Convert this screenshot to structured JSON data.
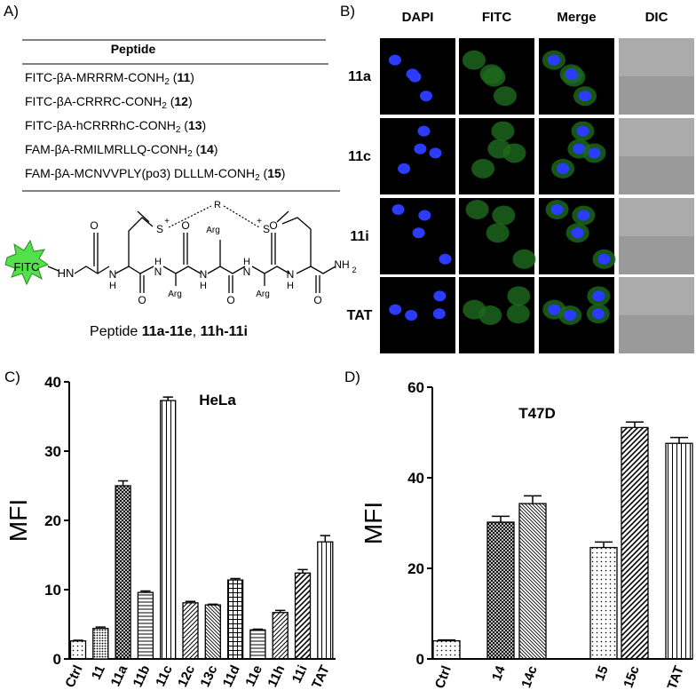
{
  "panel_a": {
    "label": "A)",
    "table": {
      "header": "Peptide",
      "rows": [
        [
          "FITC-βA-MRRRM-CONH",
          "2",
          " (",
          "11",
          ")"
        ],
        [
          "FITC-βA-CRRRC-CONH",
          "2",
          " (",
          "12",
          ")"
        ],
        [
          "FITC-βA-hCRRRhC-CONH",
          "2",
          " (",
          "13",
          ")"
        ],
        [
          "FAM-βA-RMILMRLLQ-CONH",
          "2",
          " (",
          "14",
          ")"
        ],
        [
          "FAM-βA-MCNVVPLY(po3) DLLLM-CONH",
          "2",
          " (",
          "15",
          ")"
        ]
      ]
    },
    "structure_labels": [
      "FITC",
      "HN",
      "O",
      "N",
      "H",
      "O",
      "N",
      "H",
      "O",
      "N",
      "H",
      "O",
      "N",
      "H",
      "O",
      "N",
      "H",
      "O",
      "NH",
      "2",
      "S",
      "+",
      "S",
      "+",
      "R",
      "Arg",
      "Arg",
      "Arg"
    ],
    "caption": [
      "Peptide ",
      "11a-11e",
      ", ",
      "11h-11i"
    ]
  },
  "panel_b": {
    "label": "B)",
    "columns": [
      "DAPI",
      "FITC",
      "Merge",
      "DIC"
    ],
    "rows": [
      "11a",
      "11c",
      "11i",
      "TAT"
    ]
  },
  "chart_data": [
    {
      "type": "bar",
      "panel_label": "C)",
      "title": "HeLa",
      "ylabel": "MFI",
      "categories": [
        "Ctrl",
        "11",
        "11a",
        "11b",
        "11c",
        "12c",
        "13c",
        "11d",
        "11e",
        "11h",
        "11i",
        "TAT"
      ],
      "values": [
        2.6,
        4.4,
        25.0,
        9.6,
        37.3,
        8.1,
        7.8,
        11.4,
        4.2,
        6.7,
        12.4,
        16.9
      ],
      "errors": [
        0.1,
        0.2,
        0.7,
        0.2,
        0.5,
        0.2,
        0.1,
        0.2,
        0.1,
        0.3,
        0.5,
        0.9
      ],
      "ylim": [
        0,
        40
      ],
      "yticks": [
        0,
        10,
        20,
        30,
        40
      ],
      "color": "#000000"
    },
    {
      "type": "bar",
      "panel_label": "D)",
      "title": "T47D",
      "ylabel": "MFI",
      "categories": [
        "Ctrl",
        "14",
        "14c",
        "15",
        "15c",
        "TAT"
      ],
      "values": [
        4.0,
        30.2,
        34.3,
        24.6,
        51.1,
        47.6
      ],
      "errors": [
        0.2,
        1.3,
        1.7,
        1.2,
        1.2,
        1.3
      ],
      "ylim": [
        0,
        60
      ],
      "yticks": [
        0,
        20,
        40,
        60
      ],
      "color": "#000000"
    }
  ]
}
